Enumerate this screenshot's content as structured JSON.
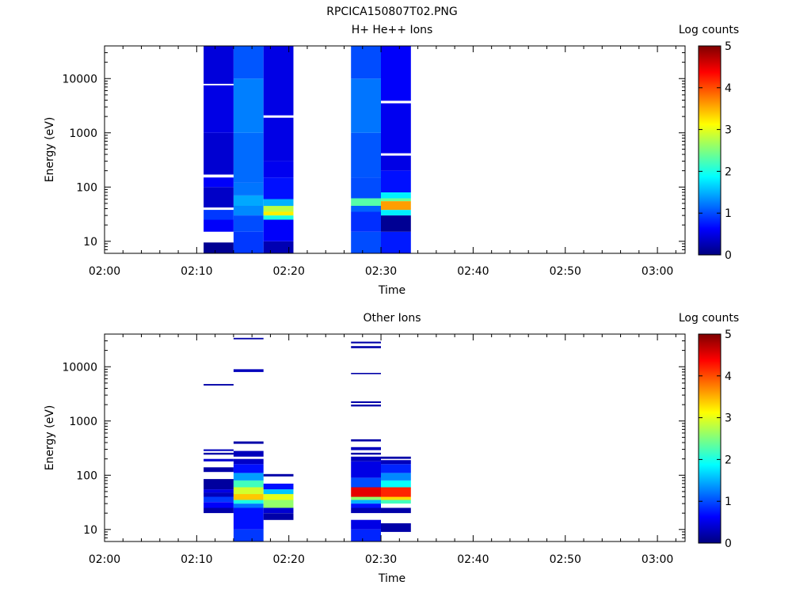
{
  "figure_title": "RPCICA150807T02.PNG",
  "colors": {
    "jet_stops": [
      "#00007f",
      "#0000ff",
      "#007fff",
      "#00ffff",
      "#7fff7f",
      "#ffff00",
      "#ff7f00",
      "#ff0000",
      "#7f0000"
    ]
  },
  "chart_data": [
    {
      "type": "heatmap",
      "title": "H+ He++ Ions",
      "xlabel": "Time",
      "ylabel": "Energy (eV)",
      "colorbar_label": "Log counts",
      "colorbar_range": [
        0,
        5
      ],
      "colorbar_ticks": [
        "0",
        "1",
        "2",
        "3",
        "4",
        "5"
      ],
      "x_range_minutes": [
        0,
        63
      ],
      "x_ticks": [
        {
          "label": "02:00",
          "minute": 0
        },
        {
          "label": "02:10",
          "minute": 10
        },
        {
          "label": "02:20",
          "minute": 20
        },
        {
          "label": "02:30",
          "minute": 30
        },
        {
          "label": "02:40",
          "minute": 40
        },
        {
          "label": "02:50",
          "minute": 50
        },
        {
          "label": "03:00",
          "minute": 60
        }
      ],
      "y_scale": "log",
      "y_range": [
        6,
        40000
      ],
      "y_ticks": [
        {
          "label": "10",
          "value": 10
        },
        {
          "label": "100",
          "value": 100
        },
        {
          "label": "1000",
          "value": 1000
        },
        {
          "label": "10000",
          "value": 10000
        }
      ],
      "columns": [
        {
          "time": "02:10:45–02:14:00",
          "t0": 10.75,
          "t1": 14.0,
          "bands": [
            {
              "e": [
                6,
                9.5
              ],
              "v": 0.1
            },
            {
              "e": [
                9.5,
                15
              ],
              "v": -1
            },
            {
              "e": [
                15,
                25
              ],
              "v": 0.6
            },
            {
              "e": [
                25,
                38
              ],
              "v": 0.9
            },
            {
              "e": [
                38,
                42
              ],
              "v": -1
            },
            {
              "e": [
                42,
                100
              ],
              "v": 0.35
            },
            {
              "e": [
                100,
                150
              ],
              "v": 0.6
            },
            {
              "e": [
                150,
                170
              ],
              "v": -1
            },
            {
              "e": [
                170,
                1000
              ],
              "v": 0.4
            },
            {
              "e": [
                1000,
                7500
              ],
              "v": 0.5
            },
            {
              "e": [
                7500,
                8000
              ],
              "v": -1
            },
            {
              "e": [
                8000,
                40000
              ],
              "v": 0.45
            }
          ]
        },
        {
          "time": "02:14:00–02:17:15",
          "t0": 14.0,
          "t1": 17.25,
          "bands": [
            {
              "e": [
                6,
                15
              ],
              "v": 0.9
            },
            {
              "e": [
                15,
                30
              ],
              "v": 1.0
            },
            {
              "e": [
                30,
                45
              ],
              "v": 1.3
            },
            {
              "e": [
                45,
                70
              ],
              "v": 1.45
            },
            {
              "e": [
                70,
                120
              ],
              "v": 1.2
            },
            {
              "e": [
                120,
                1000
              ],
              "v": 1.15
            },
            {
              "e": [
                1000,
                10000
              ],
              "v": 1.25
            },
            {
              "e": [
                10000,
                40000
              ],
              "v": 1.05
            }
          ]
        },
        {
          "time": "02:17:15–02:20:30",
          "t0": 17.25,
          "t1": 20.5,
          "bands": [
            {
              "e": [
                6,
                10
              ],
              "v": 0.25
            },
            {
              "e": [
                10,
                25
              ],
              "v": 0.6
            },
            {
              "e": [
                25,
                30
              ],
              "v": 2.0
            },
            {
              "e": [
                30,
                35
              ],
              "v": 3.2
            },
            {
              "e": [
                35,
                45
              ],
              "v": 2.8
            },
            {
              "e": [
                45,
                60
              ],
              "v": 1.5
            },
            {
              "e": [
                60,
                150
              ],
              "v": 0.7
            },
            {
              "e": [
                150,
                300
              ],
              "v": 0.55
            },
            {
              "e": [
                300,
                1900
              ],
              "v": 0.5
            },
            {
              "e": [
                1900,
                2100
              ],
              "v": -1
            },
            {
              "e": [
                2100,
                40000
              ],
              "v": 0.5
            }
          ]
        },
        {
          "time": "02:26:45–02:30:00",
          "t0": 26.75,
          "t1": 30.0,
          "bands": [
            {
              "e": [
                6,
                15
              ],
              "v": 1.0
            },
            {
              "e": [
                15,
                35
              ],
              "v": 0.85
            },
            {
              "e": [
                35,
                45
              ],
              "v": 1.1
            },
            {
              "e": [
                45,
                62
              ],
              "v": 2.3
            },
            {
              "e": [
                62,
                150
              ],
              "v": 1.0
            },
            {
              "e": [
                150,
                1000
              ],
              "v": 1.05
            },
            {
              "e": [
                1000,
                10000
              ],
              "v": 1.2
            },
            {
              "e": [
                10000,
                40000
              ],
              "v": 1.0
            }
          ]
        },
        {
          "time": "02:30:00–02:33:15",
          "t0": 30.0,
          "t1": 33.25,
          "bands": [
            {
              "e": [
                6,
                15
              ],
              "v": 0.75
            },
            {
              "e": [
                15,
                30
              ],
              "v": 0.1
            },
            {
              "e": [
                30,
                38
              ],
              "v": 1.8
            },
            {
              "e": [
                38,
                55
              ],
              "v": 3.6
            },
            {
              "e": [
                55,
                62
              ],
              "v": 2.4
            },
            {
              "e": [
                62,
                80
              ],
              "v": 1.8
            },
            {
              "e": [
                80,
                200
              ],
              "v": 0.7
            },
            {
              "e": [
                200,
                380
              ],
              "v": 0.5
            },
            {
              "e": [
                380,
                420
              ],
              "v": -1
            },
            {
              "e": [
                420,
                3500
              ],
              "v": 0.55
            },
            {
              "e": [
                3500,
                3900
              ],
              "v": -1
            },
            {
              "e": [
                3900,
                40000
              ],
              "v": 0.6
            }
          ]
        }
      ]
    },
    {
      "type": "heatmap",
      "title": "Other Ions",
      "xlabel": "Time",
      "ylabel": "Energy (eV)",
      "colorbar_label": "Log counts",
      "colorbar_range": [
        0,
        5
      ],
      "colorbar_ticks": [
        "0",
        "1",
        "2",
        "3",
        "4",
        "5"
      ],
      "x_range_minutes": [
        0,
        63
      ],
      "x_ticks": [
        {
          "label": "02:00",
          "minute": 0
        },
        {
          "label": "02:10",
          "minute": 10
        },
        {
          "label": "02:20",
          "minute": 20
        },
        {
          "label": "02:30",
          "minute": 30
        },
        {
          "label": "02:40",
          "minute": 40
        },
        {
          "label": "02:50",
          "minute": 50
        },
        {
          "label": "03:00",
          "minute": 60
        }
      ],
      "y_scale": "log",
      "y_range": [
        6,
        40000
      ],
      "y_ticks": [
        {
          "label": "10",
          "value": 10
        },
        {
          "label": "100",
          "value": 100
        },
        {
          "label": "1000",
          "value": 1000
        },
        {
          "label": "10000",
          "value": 10000
        }
      ],
      "columns": [
        {
          "time": "02:10:45–02:14:00",
          "t0": 10.75,
          "t1": 14.0,
          "bands": [
            {
              "e": [
                20,
                25
              ],
              "v": 0.2
            },
            {
              "e": [
                25,
                32
              ],
              "v": 0.6
            },
            {
              "e": [
                32,
                40
              ],
              "v": 0.9
            },
            {
              "e": [
                40,
                48
              ],
              "v": 0.3
            },
            {
              "e": [
                48,
                55
              ],
              "v": 0.5
            },
            {
              "e": [
                55,
                85
              ],
              "v": 0.15
            },
            {
              "e": [
                115,
                140
              ],
              "v": 0.2
            },
            {
              "e": [
                180,
                200
              ],
              "v": 0.4
            },
            {
              "e": [
                240,
                260
              ],
              "v": 0.2
            },
            {
              "e": [
                280,
                300
              ],
              "v": 0.3
            },
            {
              "e": [
                4500,
                4800
              ],
              "v": 0.2
            }
          ]
        },
        {
          "time": "02:14:00–02:17:15",
          "t0": 14.0,
          "t1": 17.25,
          "bands": [
            {
              "e": [
                6,
                10
              ],
              "v": 0.9
            },
            {
              "e": [
                10,
                25
              ],
              "v": 0.7
            },
            {
              "e": [
                25,
                30
              ],
              "v": 1.2
            },
            {
              "e": [
                30,
                35
              ],
              "v": 2.0
            },
            {
              "e": [
                35,
                45
              ],
              "v": 3.4
            },
            {
              "e": [
                45,
                60
              ],
              "v": 2.9
            },
            {
              "e": [
                60,
                80
              ],
              "v": 2.2
            },
            {
              "e": [
                80,
                110
              ],
              "v": 1.4
            },
            {
              "e": [
                110,
                160
              ],
              "v": 0.7
            },
            {
              "e": [
                160,
                200
              ],
              "v": 0.35
            },
            {
              "e": [
                220,
                280
              ],
              "v": 0.3
            },
            {
              "e": [
                380,
                420
              ],
              "v": 0.2
            },
            {
              "e": [
                8000,
                9000
              ],
              "v": 0.3
            },
            {
              "e": [
                32000,
                34000
              ],
              "v": 0.2
            }
          ]
        },
        {
          "time": "02:17:15–02:20:30",
          "t0": 17.25,
          "t1": 20.5,
          "bands": [
            {
              "e": [
                15,
                20
              ],
              "v": 0.2
            },
            {
              "e": [
                20,
                25
              ],
              "v": 0.4
            },
            {
              "e": [
                25,
                35
              ],
              "v": 2.6
            },
            {
              "e": [
                35,
                45
              ],
              "v": 3.0
            },
            {
              "e": [
                45,
                55
              ],
              "v": 1.6
            },
            {
              "e": [
                55,
                70
              ],
              "v": 0.7
            },
            {
              "e": [
                95,
                105
              ],
              "v": 0.2
            }
          ]
        },
        {
          "time": "02:26:45–02:30:00",
          "t0": 26.75,
          "t1": 30.0,
          "bands": [
            {
              "e": [
                6,
                10
              ],
              "v": 0.8
            },
            {
              "e": [
                10,
                15
              ],
              "v": 0.5
            },
            {
              "e": [
                20,
                25
              ],
              "v": 0.25
            },
            {
              "e": [
                25,
                30
              ],
              "v": 0.7
            },
            {
              "e": [
                30,
                35
              ],
              "v": 1.5
            },
            {
              "e": [
                35,
                40
              ],
              "v": 2.6
            },
            {
              "e": [
                40,
                60
              ],
              "v": 4.5
            },
            {
              "e": [
                60,
                90
              ],
              "v": 1.0
            },
            {
              "e": [
                90,
                180
              ],
              "v": 0.5
            },
            {
              "e": [
                180,
                220
              ],
              "v": 0.3
            },
            {
              "e": [
                240,
                260
              ],
              "v": 0.2
            },
            {
              "e": [
                290,
                330
              ],
              "v": 0.3
            },
            {
              "e": [
                420,
                460
              ],
              "v": 0.2
            },
            {
              "e": [
                1850,
                2000
              ],
              "v": 0.2
            },
            {
              "e": [
                2150,
                2300
              ],
              "v": 0.2
            },
            {
              "e": [
                7300,
                7700
              ],
              "v": 0.2
            },
            {
              "e": [
                22000,
                24000
              ],
              "v": 0.2
            },
            {
              "e": [
                27000,
                29000
              ],
              "v": 0.2
            }
          ]
        },
        {
          "time": "02:30:00–02:33:15",
          "t0": 30.0,
          "t1": 33.25,
          "bands": [
            {
              "e": [
                9,
                13
              ],
              "v": 0.2
            },
            {
              "e": [
                20,
                25
              ],
              "v": 0.2
            },
            {
              "e": [
                30,
                35
              ],
              "v": 2.2
            },
            {
              "e": [
                35,
                40
              ],
              "v": 3.3
            },
            {
              "e": [
                40,
                60
              ],
              "v": 4.2
            },
            {
              "e": [
                60,
                80
              ],
              "v": 1.9
            },
            {
              "e": [
                80,
                110
              ],
              "v": 1.3
            },
            {
              "e": [
                110,
                160
              ],
              "v": 0.8
            },
            {
              "e": [
                160,
                190
              ],
              "v": 0.3
            },
            {
              "e": [
                200,
                220
              ],
              "v": 0.2
            }
          ]
        }
      ]
    }
  ]
}
